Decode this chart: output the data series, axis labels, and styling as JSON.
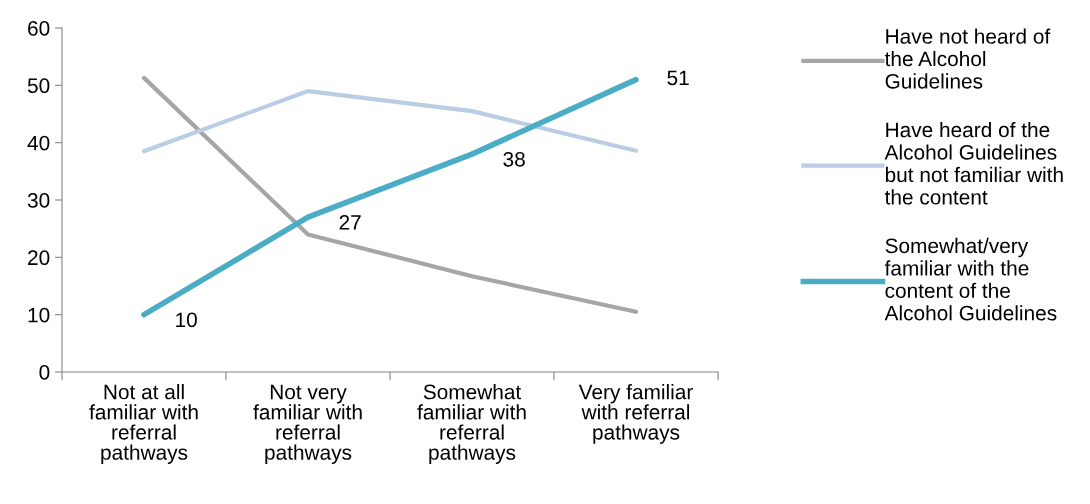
{
  "chart_data": {
    "type": "line",
    "categories": [
      "Not at all\nfamiliar with\nreferral\npathways",
      "Not very\nfamiliar with\nreferral\npathways",
      "Somewhat\nfamiliar with\nreferral\npathways",
      "Very familiar\nwith referral\npathways"
    ],
    "series": [
      {
        "name": "Have not heard of\nthe Alcohol\nGuidelines",
        "color": "#a6a6a6",
        "values": [
          51.3,
          24,
          16.7,
          10.5
        ]
      },
      {
        "name": "Have heard of the\nAlcohol Guidelines\nbut not familiar with\nthe content",
        "color": "#b9cde5",
        "values": [
          38.5,
          49,
          45.5,
          38.6
        ]
      },
      {
        "name": "Somewhat/very\nfamiliar with the\ncontent of the\nAlcohol Guidelines",
        "color": "#4bacc6",
        "values": [
          10,
          27,
          38,
          51
        ],
        "value_labels": [
          "10",
          "27",
          "38",
          "51"
        ]
      }
    ],
    "ylim": [
      0,
      60
    ],
    "yticks": [
      0,
      10,
      20,
      30,
      40,
      50,
      60
    ],
    "grid": false,
    "legend": "right",
    "marker": "none",
    "line_style": "solid"
  }
}
